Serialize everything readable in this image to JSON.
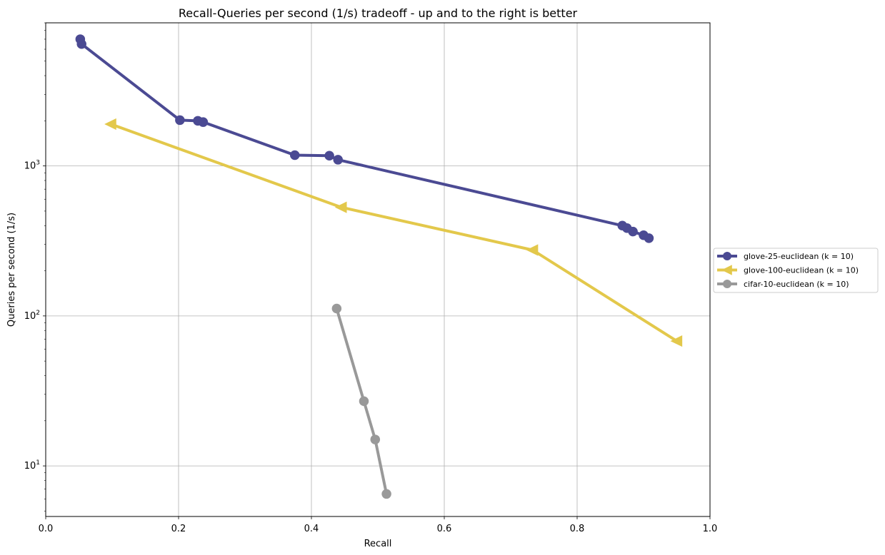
{
  "chart_data": {
    "type": "line",
    "title": "Recall-Queries per second (1/s) tradeoff - up and to the right is better",
    "xlabel": "Recall",
    "ylabel": "Queries per second (1/s)",
    "xlim": [
      0.0,
      1.0
    ],
    "ylim": [
      4.6,
      9000
    ],
    "yscale": "log",
    "grid": true,
    "legend_position": "right",
    "x_ticks": [
      "0.0",
      "0.2",
      "0.4",
      "0.6",
      "0.8",
      "1.0"
    ],
    "series": [
      {
        "name": "glove-25-euclidean (k = 10)",
        "color": "#4b4a93",
        "marker": "circle",
        "x": [
          0.052,
          0.054,
          0.202,
          0.229,
          0.237,
          0.375,
          0.427,
          0.44,
          0.868,
          0.875,
          0.884,
          0.9,
          0.908
        ],
        "y": [
          7000,
          6500,
          2020,
          2000,
          1960,
          1180,
          1170,
          1100,
          400,
          385,
          365,
          345,
          330
        ]
      },
      {
        "name": "glove-100-euclidean (k = 10)",
        "color": "#e3c84b",
        "marker": "triangle-left",
        "x": [
          0.098,
          0.445,
          0.733,
          0.95
        ],
        "y": [
          1900,
          530,
          275,
          68
        ]
      },
      {
        "name": "cifar-10-euclidean (k = 10)",
        "color": "#999999",
        "marker": "circle",
        "x": [
          0.438,
          0.479,
          0.496,
          0.513
        ],
        "y": [
          112,
          27,
          15,
          6.5
        ]
      }
    ]
  }
}
